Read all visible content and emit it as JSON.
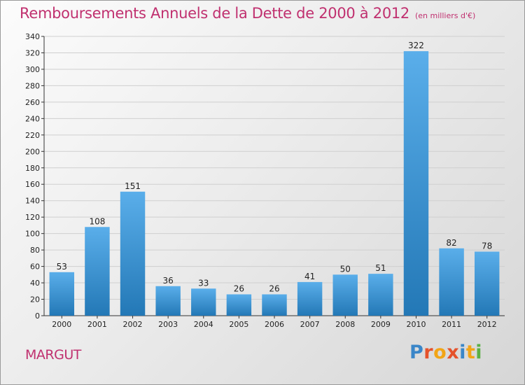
{
  "header": {
    "title": "Remboursements Annuels de la Dette de 2000 à 2012",
    "subtitle": "(en milliers d'€)"
  },
  "footer": {
    "commune": "MARGUT",
    "logo_text": "Proxiti"
  },
  "colors": {
    "title": "#c0306f",
    "bar_top": "#5aaeea",
    "bar_bottom": "#2378b6",
    "grid": "#cfcfcf",
    "axis": "#333333"
  },
  "chart_data": {
    "type": "bar",
    "title": "Remboursements Annuels de la Dette de 2000 à 2012",
    "subtitle": "(en milliers d'€)",
    "xlabel": "",
    "ylabel": "",
    "categories": [
      "2000",
      "2001",
      "2002",
      "2003",
      "2004",
      "2005",
      "2006",
      "2007",
      "2008",
      "2009",
      "2010",
      "2011",
      "2012"
    ],
    "values": [
      53,
      108,
      151,
      36,
      33,
      26,
      26,
      41,
      50,
      51,
      322,
      82,
      78
    ],
    "ylim": [
      0,
      340
    ],
    "yticks": [
      0,
      20,
      40,
      60,
      80,
      100,
      120,
      140,
      160,
      180,
      200,
      220,
      240,
      260,
      280,
      300,
      320,
      340
    ],
    "grid": true,
    "data_labels": true
  }
}
